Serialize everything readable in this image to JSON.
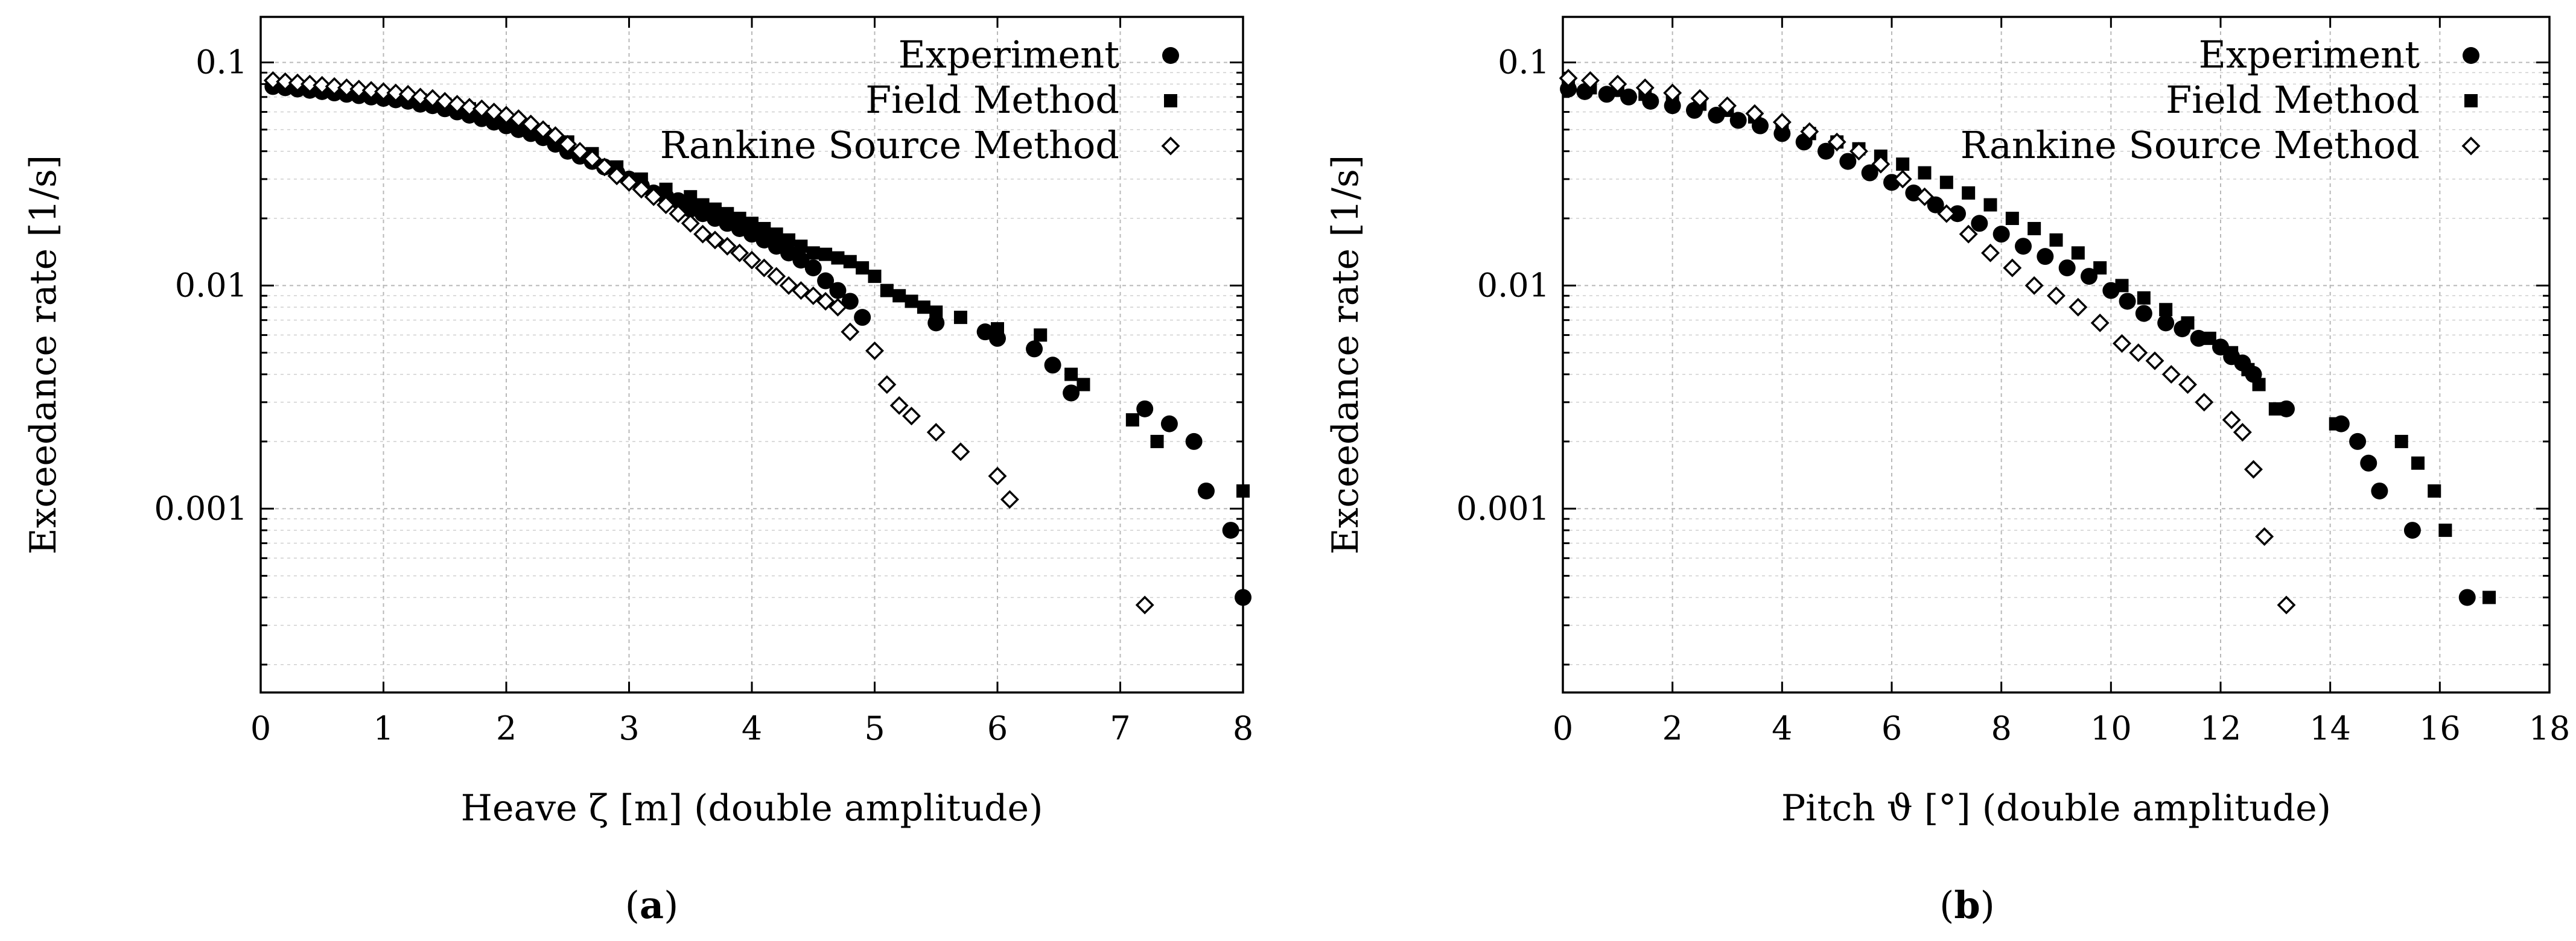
{
  "chart_data": [
    {
      "type": "scatter",
      "panel_label": {
        "open": "(",
        "letter": "a",
        "close": ")"
      },
      "xlabel": "Heave ζ [m] (double amplitude)",
      "ylabel": "Exceedance rate [1/s]",
      "xlim": [
        0,
        8
      ],
      "ylim": [
        0.00015,
        0.16
      ],
      "yscale": "log",
      "xticks": [
        0,
        1,
        2,
        3,
        4,
        5,
        6,
        7,
        8
      ],
      "yticks": [
        {
          "value": 0.001,
          "label": "0.001"
        },
        {
          "value": 0.01,
          "label": "0.01"
        },
        {
          "value": 0.1,
          "label": "0.1"
        }
      ],
      "grid": true,
      "legend_position": "top-right",
      "series": [
        {
          "name": "Experiment",
          "marker": "circle",
          "x": [
            0.1,
            0.2,
            0.3,
            0.4,
            0.5,
            0.6,
            0.7,
            0.8,
            0.9,
            1.0,
            1.1,
            1.2,
            1.3,
            1.4,
            1.5,
            1.6,
            1.7,
            1.8,
            1.9,
            2.0,
            2.1,
            2.2,
            2.3,
            2.4,
            2.5,
            2.6,
            2.7,
            2.8,
            2.9,
            3.0,
            3.1,
            3.2,
            3.3,
            3.4,
            3.5,
            3.6,
            3.7,
            3.8,
            3.9,
            4.0,
            4.1,
            4.2,
            4.3,
            4.4,
            4.5,
            4.6,
            4.7,
            4.8,
            4.9,
            5.5,
            5.9,
            6.0,
            6.3,
            6.45,
            6.6,
            7.2,
            7.4,
            7.6,
            7.7,
            7.9,
            8.0
          ],
          "y": [
            0.078,
            0.077,
            0.076,
            0.075,
            0.074,
            0.073,
            0.072,
            0.071,
            0.07,
            0.069,
            0.068,
            0.067,
            0.065,
            0.064,
            0.062,
            0.06,
            0.058,
            0.056,
            0.054,
            0.052,
            0.05,
            0.048,
            0.046,
            0.043,
            0.04,
            0.038,
            0.036,
            0.034,
            0.032,
            0.03,
            0.028,
            0.026,
            0.025,
            0.024,
            0.022,
            0.021,
            0.02,
            0.019,
            0.018,
            0.017,
            0.016,
            0.015,
            0.014,
            0.013,
            0.012,
            0.0105,
            0.0095,
            0.0085,
            0.0072,
            0.0068,
            0.0062,
            0.0058,
            0.0052,
            0.0044,
            0.0033,
            0.0028,
            0.0024,
            0.002,
            0.0012,
            0.0008,
            0.0004
          ]
        },
        {
          "name": "Field Method",
          "marker": "square",
          "x": [
            0.1,
            0.3,
            0.5,
            0.7,
            0.9,
            1.1,
            1.3,
            1.5,
            1.7,
            1.9,
            2.1,
            2.3,
            2.5,
            2.7,
            2.9,
            3.1,
            3.3,
            3.5,
            3.6,
            3.7,
            3.8,
            3.9,
            4.0,
            4.1,
            4.2,
            4.3,
            4.4,
            4.5,
            4.6,
            4.7,
            4.8,
            4.9,
            5.0,
            5.1,
            5.2,
            5.3,
            5.4,
            5.5,
            5.7,
            6.0,
            6.35,
            6.6,
            6.7,
            7.1,
            7.3,
            8.0
          ],
          "y": [
            0.08,
            0.078,
            0.076,
            0.074,
            0.072,
            0.07,
            0.068,
            0.065,
            0.062,
            0.058,
            0.054,
            0.049,
            0.044,
            0.039,
            0.034,
            0.03,
            0.027,
            0.025,
            0.023,
            0.022,
            0.021,
            0.02,
            0.019,
            0.018,
            0.017,
            0.016,
            0.015,
            0.014,
            0.0138,
            0.0133,
            0.0128,
            0.012,
            0.011,
            0.0095,
            0.009,
            0.0085,
            0.008,
            0.0076,
            0.0072,
            0.0064,
            0.006,
            0.004,
            0.0036,
            0.0025,
            0.002,
            0.0012
          ]
        },
        {
          "name": "Rankine Source Method",
          "marker": "diamond",
          "x": [
            0.1,
            0.2,
            0.3,
            0.4,
            0.5,
            0.6,
            0.7,
            0.8,
            0.9,
            1.0,
            1.1,
            1.2,
            1.3,
            1.4,
            1.5,
            1.6,
            1.7,
            1.8,
            1.9,
            2.0,
            2.1,
            2.2,
            2.3,
            2.4,
            2.5,
            2.6,
            2.7,
            2.8,
            2.9,
            3.0,
            3.1,
            3.2,
            3.3,
            3.4,
            3.5,
            3.6,
            3.7,
            3.8,
            3.9,
            4.0,
            4.1,
            4.2,
            4.3,
            4.4,
            4.5,
            4.6,
            4.7,
            4.8,
            5.0,
            5.1,
            5.2,
            5.3,
            5.5,
            5.7,
            6.0,
            6.1,
            7.2
          ],
          "y": [
            0.083,
            0.082,
            0.081,
            0.08,
            0.079,
            0.078,
            0.077,
            0.076,
            0.075,
            0.074,
            0.073,
            0.072,
            0.07,
            0.069,
            0.067,
            0.065,
            0.063,
            0.062,
            0.06,
            0.058,
            0.056,
            0.053,
            0.05,
            0.047,
            0.043,
            0.04,
            0.037,
            0.034,
            0.031,
            0.029,
            0.027,
            0.025,
            0.023,
            0.021,
            0.019,
            0.017,
            0.016,
            0.015,
            0.014,
            0.013,
            0.012,
            0.011,
            0.01,
            0.0095,
            0.009,
            0.0085,
            0.008,
            0.0062,
            0.0051,
            0.0036,
            0.0029,
            0.0026,
            0.0022,
            0.0018,
            0.0014,
            0.0011,
            0.00037
          ]
        }
      ]
    },
    {
      "type": "scatter",
      "panel_label": {
        "open": "(",
        "letter": "b",
        "close": ")"
      },
      "xlabel": "Pitch ϑ [°] (double amplitude)",
      "ylabel": "Exceedance rate [1/s]",
      "xlim": [
        0,
        18
      ],
      "ylim": [
        0.00015,
        0.16
      ],
      "yscale": "log",
      "xticks": [
        0,
        2,
        4,
        6,
        8,
        10,
        12,
        14,
        16,
        18
      ],
      "yticks": [
        {
          "value": 0.001,
          "label": "0.001"
        },
        {
          "value": 0.01,
          "label": "0.01"
        },
        {
          "value": 0.1,
          "label": "0.1"
        }
      ],
      "grid": true,
      "legend_position": "top-right",
      "series": [
        {
          "name": "Experiment",
          "marker": "circle",
          "x": [
            0.1,
            0.4,
            0.8,
            1.2,
            1.6,
            2.0,
            2.4,
            2.8,
            3.2,
            3.6,
            4.0,
            4.4,
            4.8,
            5.2,
            5.6,
            6.0,
            6.4,
            6.8,
            7.2,
            7.6,
            8.0,
            8.4,
            8.8,
            9.2,
            9.6,
            10.0,
            10.3,
            10.6,
            11.0,
            11.3,
            11.6,
            12.0,
            12.2,
            12.4,
            12.6,
            13.2,
            14.2,
            14.5,
            14.7,
            14.9,
            15.5,
            16.5
          ],
          "y": [
            0.076,
            0.074,
            0.072,
            0.07,
            0.067,
            0.064,
            0.061,
            0.058,
            0.055,
            0.052,
            0.048,
            0.044,
            0.04,
            0.036,
            0.032,
            0.029,
            0.026,
            0.023,
            0.021,
            0.019,
            0.017,
            0.015,
            0.0135,
            0.012,
            0.011,
            0.0095,
            0.0085,
            0.0075,
            0.0068,
            0.0064,
            0.0058,
            0.0053,
            0.0048,
            0.0045,
            0.004,
            0.0028,
            0.0024,
            0.002,
            0.0016,
            0.0012,
            0.0008,
            0.0004
          ]
        },
        {
          "name": "Field Method",
          "marker": "square",
          "x": [
            0.1,
            0.5,
            1.0,
            1.5,
            2.0,
            2.5,
            3.0,
            3.5,
            4.0,
            4.5,
            5.0,
            5.4,
            5.8,
            6.2,
            6.6,
            7.0,
            7.4,
            7.8,
            8.2,
            8.6,
            9.0,
            9.4,
            9.8,
            10.2,
            10.6,
            11.0,
            11.4,
            11.8,
            12.2,
            12.5,
            12.7,
            13.0,
            14.1,
            15.3,
            15.6,
            15.9,
            16.1,
            16.9
          ],
          "y": [
            0.079,
            0.077,
            0.075,
            0.072,
            0.069,
            0.065,
            0.061,
            0.057,
            0.052,
            0.048,
            0.044,
            0.041,
            0.038,
            0.035,
            0.032,
            0.029,
            0.026,
            0.023,
            0.02,
            0.018,
            0.016,
            0.014,
            0.012,
            0.01,
            0.0088,
            0.0078,
            0.0068,
            0.0058,
            0.005,
            0.0042,
            0.0036,
            0.0028,
            0.0024,
            0.002,
            0.0016,
            0.0012,
            0.0008,
            0.0004
          ]
        },
        {
          "name": "Rankine Source Method",
          "marker": "diamond",
          "x": [
            0.1,
            0.5,
            1.0,
            1.5,
            2.0,
            2.5,
            3.0,
            3.5,
            4.0,
            4.5,
            5.0,
            5.4,
            5.8,
            6.2,
            6.6,
            7.0,
            7.4,
            7.8,
            8.2,
            8.6,
            9.0,
            9.4,
            9.8,
            10.2,
            10.5,
            10.8,
            11.1,
            11.4,
            11.7,
            12.2,
            12.4,
            12.6,
            12.8,
            13.2
          ],
          "y": [
            0.085,
            0.083,
            0.08,
            0.077,
            0.073,
            0.069,
            0.064,
            0.059,
            0.054,
            0.049,
            0.044,
            0.04,
            0.035,
            0.03,
            0.025,
            0.021,
            0.017,
            0.014,
            0.012,
            0.01,
            0.009,
            0.008,
            0.0068,
            0.0055,
            0.005,
            0.0046,
            0.004,
            0.0036,
            0.003,
            0.0025,
            0.0022,
            0.0015,
            0.00075,
            0.00037
          ]
        }
      ]
    }
  ]
}
